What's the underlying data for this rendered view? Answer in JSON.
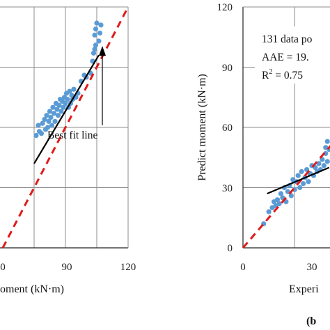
{
  "chart_data": [
    {
      "type": "scatter",
      "panel": "left (cropped)",
      "xlabel": "oment (kN·m)",
      "ylabel": "",
      "xlim": [
        0,
        120
      ],
      "ylim": [
        0,
        120
      ],
      "x_ticks": [
        "0",
        "90",
        "120"
      ],
      "y_ticks": [],
      "grid": true,
      "reference_line": {
        "style": "red dashed",
        "from": [
          0,
          0
        ],
        "to": [
          120,
          120
        ]
      },
      "best_fit_line": {
        "style": "black solid",
        "from": [
          30,
          42
        ],
        "to": [
          92,
          96
        ]
      },
      "annotation": "Best fit line",
      "series": [
        {
          "color": "#5b9bd5",
          "points": [
            [
              32,
              56
            ],
            [
              35,
              58
            ],
            [
              34,
              61
            ],
            [
              37,
              57
            ],
            [
              38,
              62
            ],
            [
              40,
              64
            ],
            [
              41,
              59
            ],
            [
              42,
              66
            ],
            [
              43,
              60
            ],
            [
              44,
              63
            ],
            [
              45,
              68
            ],
            [
              46,
              65
            ],
            [
              47,
              61
            ],
            [
              48,
              70
            ],
            [
              49,
              67
            ],
            [
              50,
              63
            ],
            [
              51,
              72
            ],
            [
              52,
              69
            ],
            [
              53,
              66
            ],
            [
              54,
              71
            ],
            [
              55,
              74
            ],
            [
              56,
              68
            ],
            [
              57,
              73
            ],
            [
              58,
              70
            ],
            [
              59,
              75
            ],
            [
              60,
              72
            ],
            [
              61,
              77
            ],
            [
              62,
              74
            ],
            [
              63,
              70
            ],
            [
              64,
              78
            ],
            [
              65,
              72
            ],
            [
              66,
              76
            ],
            [
              67,
              74
            ],
            [
              68,
              79
            ],
            [
              70,
              75
            ],
            [
              72,
              77
            ],
            [
              75,
              83
            ],
            [
              78,
              86
            ],
            [
              80,
              85
            ],
            [
              84,
              87
            ],
            [
              86,
              93
            ],
            [
              87,
              97
            ],
            [
              88,
              99
            ],
            [
              88,
              106
            ],
            [
              89,
              101
            ],
            [
              89,
              109
            ],
            [
              90,
              112
            ],
            [
              92,
              103
            ],
            [
              93,
              107
            ],
            [
              94,
              111
            ]
          ]
        }
      ]
    },
    {
      "type": "scatter",
      "panel": "right (cropped)",
      "xlabel": "Experi",
      "ylabel": "Predict moment (kN·m)",
      "xlim": [
        0,
        120
      ],
      "ylim": [
        0,
        120
      ],
      "x_ticks": [
        "0",
        "30"
      ],
      "y_ticks": [
        "0",
        "30",
        "60",
        "90",
        "120"
      ],
      "grid": true,
      "reference_line": {
        "style": "red dashed",
        "from": [
          0,
          0
        ],
        "to": [
          120,
          120
        ]
      },
      "best_fit_line": {
        "style": "black solid",
        "from": [
          14,
          27
        ],
        "to": [
          50,
          40
        ]
      },
      "annotation_lines": [
        "131 data po",
        "AAE = 19.",
        "R",
        "2",
        " = 0.75"
      ],
      "panel_label": "(b",
      "series": [
        {
          "color": "#5b9bd5",
          "points": [
            [
              12,
              12
            ],
            [
              15,
              18
            ],
            [
              17,
              20
            ],
            [
              18,
              23
            ],
            [
              19,
              21
            ],
            [
              20,
              24
            ],
            [
              21,
              22
            ],
            [
              22,
              27
            ],
            [
              23,
              25
            ],
            [
              24,
              30
            ],
            [
              25,
              23
            ],
            [
              26,
              28
            ],
            [
              27,
              31
            ],
            [
              28,
              26
            ],
            [
              29,
              34
            ],
            [
              30,
              29
            ],
            [
              31,
              33
            ],
            [
              32,
              36
            ],
            [
              33,
              30
            ],
            [
              34,
              38
            ],
            [
              35,
              32
            ],
            [
              36,
              35
            ],
            [
              37,
              39
            ],
            [
              38,
              33
            ],
            [
              39,
              37
            ],
            [
              40,
              41
            ],
            [
              41,
              36
            ],
            [
              42,
              40
            ],
            [
              43,
              38
            ],
            [
              44,
              42
            ],
            [
              45,
              39
            ],
            [
              46,
              44
            ],
            [
              47,
              41
            ],
            [
              48,
              47
            ],
            [
              49,
              43
            ],
            [
              50,
              49
            ],
            [
              48,
              50
            ],
            [
              49,
              53
            ]
          ]
        }
      ]
    }
  ],
  "panel_left": {
    "annotation": "Best fit line",
    "x_tick_labels": [
      "0",
      "90",
      "120"
    ],
    "xlabel": "oment (kN·m)"
  },
  "panel_right": {
    "annotation_line1": "131 data po",
    "annotation_line2": "AAE = 19.",
    "annotation_r": "R",
    "annotation_sup": "2",
    "annotation_r_tail": " = 0.75",
    "y_tick_labels": [
      "120",
      "90",
      "60",
      "30",
      "0"
    ],
    "x_tick_labels": [
      "0",
      "30"
    ],
    "ylabel": "Predict moment (kN·m)",
    "xlabel": "Experi",
    "panel_label": "(b"
  }
}
